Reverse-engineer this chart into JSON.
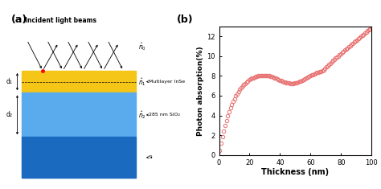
{
  "title_a": "(a)",
  "title_b": "(b)",
  "xlabel_b": "Thickness (nm)",
  "ylabel_b": "Photon absorption(%)",
  "xlim_b": [
    0,
    100
  ],
  "ylim_b": [
    0,
    13
  ],
  "yticks_b": [
    0,
    2,
    4,
    6,
    8,
    10,
    12
  ],
  "xticks_b": [
    0,
    20,
    40,
    60,
    80,
    100
  ],
  "marker_color": "#e87070",
  "marker_facecolor": "none",
  "marker_size": 3.2,
  "marker_edgewidth": 0.7,
  "layer_colors": {
    "inse": "#f5c518",
    "sio2": "#5aabee",
    "si": "#1a6bbf"
  },
  "background": "#ffffff",
  "incident_label": "Incident light beams",
  "label_inse": "Mutilayer InSe",
  "label_sio2": "285 nm SiO₂",
  "label_si": "Si"
}
